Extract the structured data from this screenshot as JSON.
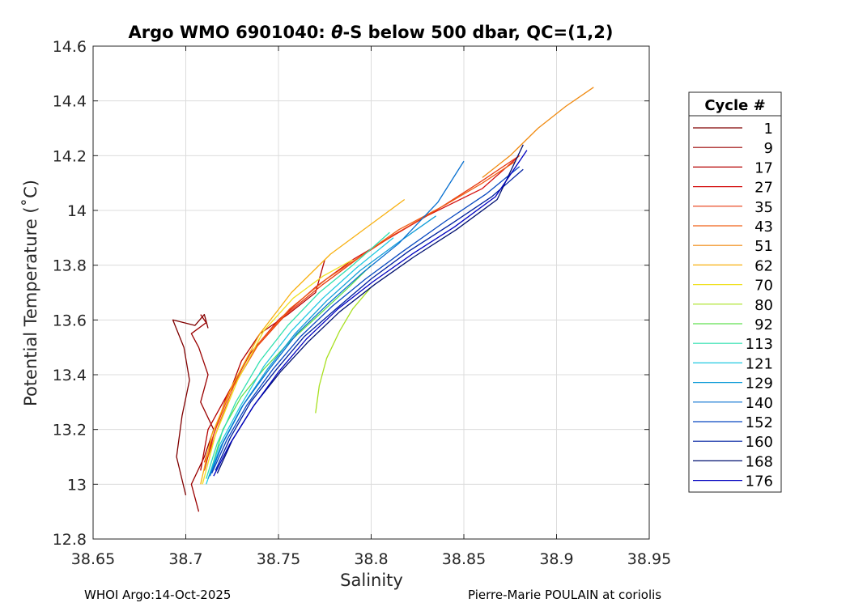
{
  "chart_data": {
    "type": "line",
    "title_prefix": "Argo WMO 6901040: ",
    "title_symbol": "θ",
    "title_suffix": "-S below 500 dbar,  QC=(1,2)",
    "xlabel": "Salinity",
    "ylabel": "Potential Temperature (˚C)",
    "xlim": [
      38.65,
      38.95
    ],
    "ylim": [
      12.8,
      14.6
    ],
    "xticks": [
      38.65,
      38.7,
      38.75,
      38.8,
      38.85,
      38.9,
      38.95
    ],
    "xtick_labels": [
      "38.65",
      "38.7",
      "38.75",
      "38.8",
      "38.85",
      "38.9",
      "38.95"
    ],
    "yticks": [
      12.8,
      13,
      13.2,
      13.4,
      13.6,
      13.8,
      14,
      14.2,
      14.4,
      14.6
    ],
    "ytick_labels": [
      "12.8",
      "13",
      "13.2",
      "13.4",
      "13.6",
      "13.8",
      "14",
      "14.2",
      "14.4",
      "14.6"
    ],
    "grid": true,
    "legend": {
      "title": "Cycle #",
      "placement": "right",
      "entries": [
        {
          "label": "1",
          "color": "#800000"
        },
        {
          "label": "9",
          "color": "#9a0000"
        },
        {
          "label": "17",
          "color": "#b40000"
        },
        {
          "label": "27",
          "color": "#d41010"
        },
        {
          "label": "35",
          "color": "#e83a10"
        },
        {
          "label": "43",
          "color": "#f06018"
        },
        {
          "label": "51",
          "color": "#f08a10"
        },
        {
          "label": "62",
          "color": "#f8b010"
        },
        {
          "label": "70",
          "color": "#f0e020"
        },
        {
          "label": "80",
          "color": "#a8e020"
        },
        {
          "label": "92",
          "color": "#60e050"
        },
        {
          "label": "113",
          "color": "#30e0b0"
        },
        {
          "label": "121",
          "color": "#20c8e0"
        },
        {
          "label": "129",
          "color": "#109cd8"
        },
        {
          "label": "140",
          "color": "#0870d0"
        },
        {
          "label": "152",
          "color": "#0848c0"
        },
        {
          "label": "160",
          "color": "#0020a0"
        },
        {
          "label": "168",
          "color": "#001070"
        },
        {
          "label": "176",
          "color": "#0000c0"
        }
      ]
    },
    "series": [
      {
        "name": "1",
        "color": "#800000",
        "x": [
          38.7,
          38.695,
          38.698,
          38.702,
          38.699,
          38.693,
          38.705,
          38.71,
          38.712
        ],
        "y": [
          12.96,
          13.1,
          13.25,
          13.38,
          13.5,
          13.6,
          13.58,
          13.62,
          13.57
        ]
      },
      {
        "name": "9",
        "color": "#9a0000",
        "x": [
          38.707,
          38.703,
          38.71,
          38.715,
          38.708,
          38.712,
          38.707,
          38.703,
          38.711,
          38.708
        ],
        "y": [
          12.9,
          13.0,
          13.1,
          13.2,
          13.3,
          13.4,
          13.5,
          13.55,
          13.59,
          13.62
        ]
      },
      {
        "name": "17",
        "color": "#b40000",
        "x": [
          38.708,
          38.712,
          38.725,
          38.73,
          38.74,
          38.755,
          38.77,
          38.775
        ],
        "y": [
          13.05,
          13.2,
          13.36,
          13.45,
          13.55,
          13.62,
          13.7,
          13.82
        ]
      },
      {
        "name": "27",
        "color": "#d41010",
        "x": [
          38.71,
          38.715,
          38.722,
          38.735,
          38.75,
          38.77,
          38.79,
          38.81,
          38.83,
          38.86,
          38.88
        ],
        "y": [
          13.05,
          13.18,
          13.32,
          13.48,
          13.6,
          13.72,
          13.82,
          13.9,
          13.98,
          14.08,
          14.2
        ]
      },
      {
        "name": "35",
        "color": "#e83a10",
        "x": [
          38.71,
          38.716,
          38.724,
          38.738,
          38.754,
          38.774,
          38.794,
          38.812,
          38.835,
          38.858,
          38.88
        ],
        "y": [
          13.08,
          13.2,
          13.34,
          13.5,
          13.62,
          13.73,
          13.83,
          13.91,
          14.0,
          14.1,
          14.2
        ]
      },
      {
        "name": "43",
        "color": "#f06018",
        "x": [
          38.712,
          38.718,
          38.726,
          38.74,
          38.756,
          38.776,
          38.796,
          38.815,
          38.84,
          38.86,
          38.878
        ],
        "y": [
          13.1,
          13.22,
          13.36,
          13.52,
          13.64,
          13.75,
          13.84,
          13.93,
          14.02,
          14.1,
          14.18
        ]
      },
      {
        "name": "51",
        "color": "#f08a10",
        "x": [
          38.86,
          38.875,
          38.89,
          38.905,
          38.92
        ],
        "y": [
          14.12,
          14.2,
          14.3,
          14.38,
          14.45
        ]
      },
      {
        "name": "62",
        "color": "#f8b010",
        "x": [
          38.708,
          38.714,
          38.725,
          38.74,
          38.757,
          38.778,
          38.8,
          38.818
        ],
        "y": [
          13.0,
          13.18,
          13.36,
          13.55,
          13.7,
          13.84,
          13.95,
          14.04
        ]
      },
      {
        "name": "70",
        "color": "#f0e020",
        "x": [
          38.709,
          38.716,
          38.728,
          38.742,
          38.758,
          38.774,
          38.79
        ],
        "y": [
          13.0,
          13.18,
          13.38,
          13.56,
          13.68,
          13.76,
          13.82
        ]
      },
      {
        "name": "80",
        "color": "#a8e020",
        "x": [
          38.77,
          38.772,
          38.776,
          38.783,
          38.79,
          38.8
        ],
        "y": [
          13.26,
          13.36,
          13.46,
          13.56,
          13.64,
          13.72
        ]
      },
      {
        "name": "92",
        "color": "#60e050",
        "x": [
          38.714,
          38.72,
          38.73,
          38.742,
          38.756,
          38.772,
          38.788,
          38.8
        ],
        "y": [
          13.06,
          13.2,
          13.32,
          13.42,
          13.52,
          13.62,
          13.72,
          13.8
        ]
      },
      {
        "name": "113",
        "color": "#30e0b0",
        "x": [
          38.711,
          38.717,
          38.727,
          38.74,
          38.755,
          38.772,
          38.79,
          38.81
        ],
        "y": [
          13.02,
          13.15,
          13.3,
          13.45,
          13.58,
          13.7,
          13.8,
          13.92
        ]
      },
      {
        "name": "121",
        "color": "#20c8e0",
        "x": [
          38.711,
          38.718,
          38.729,
          38.742,
          38.757,
          38.774,
          38.792,
          38.812
        ],
        "y": [
          13.0,
          13.14,
          13.28,
          13.43,
          13.56,
          13.68,
          13.79,
          13.9
        ]
      },
      {
        "name": "129",
        "color": "#109cd8",
        "x": [
          38.712,
          38.719,
          38.73,
          38.744,
          38.759,
          38.776,
          38.794,
          38.814,
          38.835
        ],
        "y": [
          13.02,
          13.14,
          13.28,
          13.42,
          13.55,
          13.67,
          13.78,
          13.88,
          13.98
        ]
      },
      {
        "name": "140",
        "color": "#0870d0",
        "x": [
          38.713,
          38.72,
          38.731,
          38.745,
          38.76,
          38.777,
          38.795,
          38.815,
          38.836,
          38.85
        ],
        "y": [
          13.03,
          13.15,
          13.29,
          13.42,
          13.55,
          13.66,
          13.77,
          13.88,
          14.03,
          14.18
        ]
      },
      {
        "name": "152",
        "color": "#0848c0",
        "x": [
          38.714,
          38.722,
          38.733,
          38.747,
          38.762,
          38.779,
          38.797,
          38.817,
          38.84,
          38.862,
          38.88
        ],
        "y": [
          13.04,
          13.16,
          13.29,
          13.42,
          13.54,
          13.65,
          13.75,
          13.85,
          13.96,
          14.06,
          14.16
        ]
      },
      {
        "name": "160",
        "color": "#0020a0",
        "x": [
          38.716,
          38.724,
          38.735,
          38.749,
          38.764,
          38.781,
          38.8,
          38.82,
          38.843,
          38.865,
          38.882
        ],
        "y": [
          13.05,
          13.17,
          13.3,
          13.42,
          13.54,
          13.64,
          13.75,
          13.85,
          13.95,
          14.05,
          14.15
        ]
      },
      {
        "name": "168",
        "color": "#001070",
        "x": [
          38.717,
          38.725,
          38.737,
          38.751,
          38.766,
          38.783,
          38.802,
          38.823,
          38.846,
          38.868,
          38.882
        ],
        "y": [
          13.04,
          13.16,
          13.29,
          13.41,
          13.52,
          13.63,
          13.73,
          13.83,
          13.93,
          14.04,
          14.24
        ]
      },
      {
        "name": "176",
        "color": "#0000c0",
        "x": [
          38.715,
          38.724,
          38.736,
          38.75,
          38.765,
          38.782,
          38.801,
          38.822,
          38.845,
          38.867,
          38.884
        ],
        "y": [
          13.03,
          13.15,
          13.28,
          13.41,
          13.53,
          13.64,
          13.74,
          13.84,
          13.94,
          14.05,
          14.22
        ]
      }
    ]
  },
  "footer": {
    "left": "WHOI Argo:14-Oct-2025",
    "right": "Pierre-Marie POULAIN at coriolis"
  }
}
